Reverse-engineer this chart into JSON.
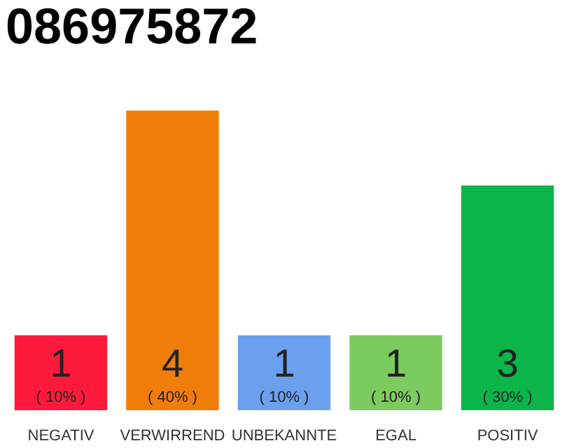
{
  "chart_data": {
    "type": "bar",
    "title": "086975872",
    "categories": [
      "NEGATIV",
      "VERWIRREND",
      "UNBEKANNTE",
      "EGAL",
      "POSITIV"
    ],
    "values": [
      1,
      4,
      1,
      1,
      3
    ],
    "colors": [
      "#ff1a3c",
      "#f07d0a",
      "#6aa0ee",
      "#7ccb5e",
      "#0bb54a"
    ],
    "data_labels": true,
    "annotations": [
      "( 10% )",
      "( 40% )",
      "( 10% )",
      "( 10% )",
      "( 30% )"
    ]
  }
}
